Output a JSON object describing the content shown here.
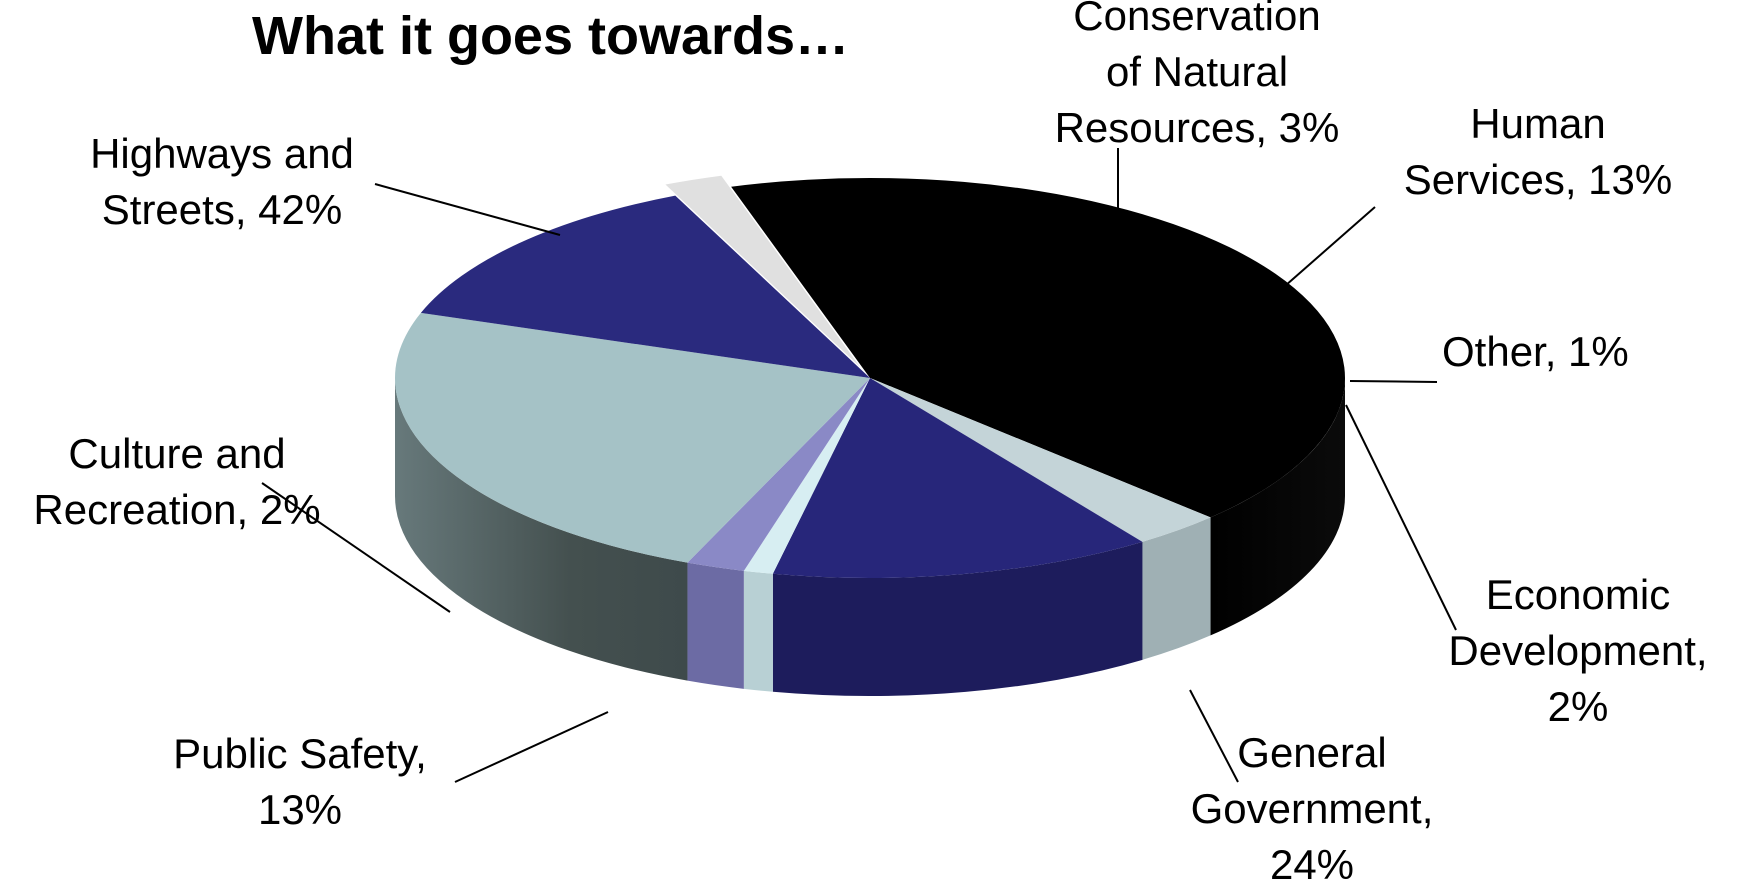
{
  "chart_data": {
    "type": "pie",
    "title": "What it goes towards…",
    "slices": [
      {
        "label_lines": [
          "Highways and",
          "Streets, 42%"
        ],
        "category": "Highways and Streets",
        "value": 42,
        "color": "#000000",
        "side_color": "#050505"
      },
      {
        "label_lines": [
          "Conservation",
          "of Natural",
          "Resources, 3%"
        ],
        "category": "Conservation of Natural Resources",
        "value": 3,
        "color": "#c4d4d8",
        "side_color": "#9fb0b4"
      },
      {
        "label_lines": [
          "Human",
          "Services, 13%"
        ],
        "category": "Human Services",
        "value": 13,
        "color": "#27267a",
        "side_color": "#1d1c5c"
      },
      {
        "label_lines": [
          "Other, 1%"
        ],
        "category": "Other",
        "value": 1,
        "color": "#d7eef2",
        "side_color": "#b8d0d4"
      },
      {
        "label_lines": [
          "Economic",
          "Development,",
          "2%"
        ],
        "category": "Economic Development",
        "value": 2,
        "color": "#8a89c6",
        "side_color": "#6c6ba4"
      },
      {
        "label_lines": [
          "General",
          "Government,",
          "24%"
        ],
        "category": "General Government",
        "value": 24,
        "color": "#a5c2c6",
        "side_color": "#4f5e60"
      },
      {
        "label_lines": [
          "Public Safety,",
          "13%"
        ],
        "category": "Public Safety",
        "value": 13,
        "color": "#2a2a7e",
        "side_color": "#1f1e5e"
      },
      {
        "label_lines": [
          "Culture and",
          "Recreation, 2%"
        ],
        "category": "Culture and Recreation",
        "value": 2,
        "color": "#e0e0e0",
        "side_color": "#c6c6c6"
      }
    ],
    "style": "3d-exploded",
    "legend": "none"
  }
}
